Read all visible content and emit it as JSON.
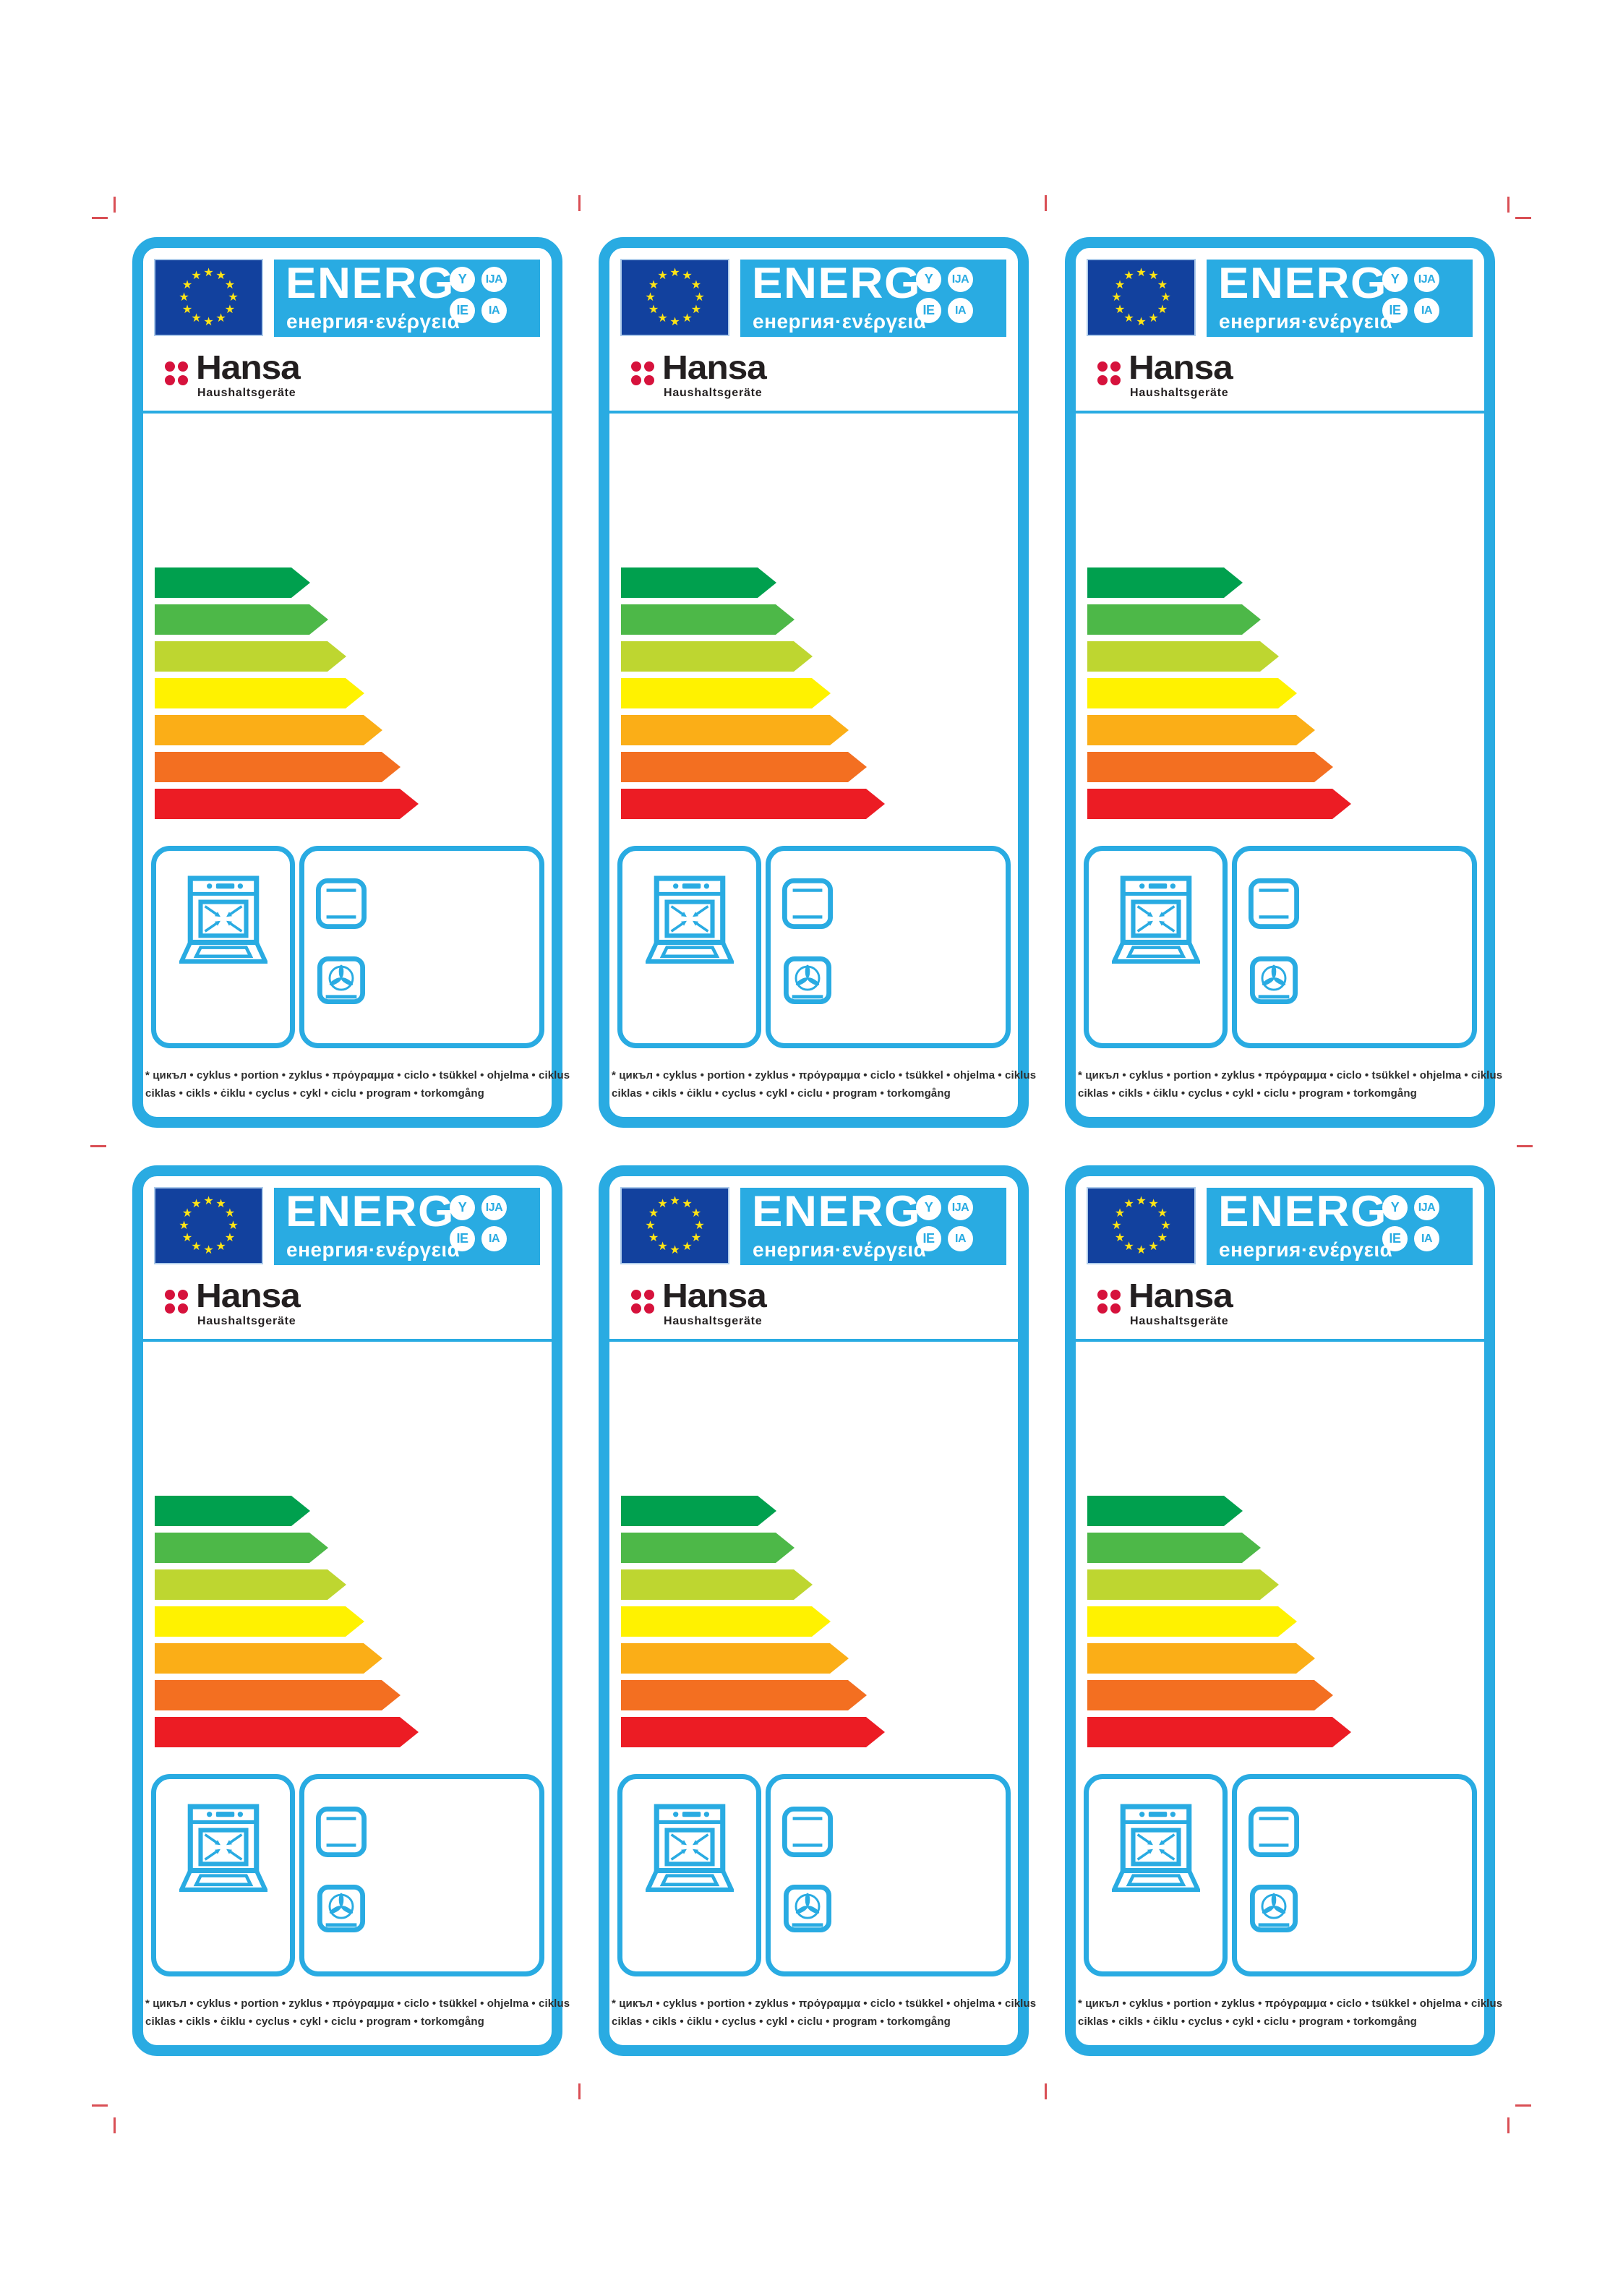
{
  "colors": {
    "accent": "#29ABE2",
    "eu_blue": "#12419E",
    "star_yellow": "#FFE415",
    "brand_red": "#D6123C",
    "brand_black": "#231F20",
    "text_dark": "#2E2E2E",
    "crop_mark": "#D94F55"
  },
  "label": {
    "energ": {
      "title": "ENERG",
      "subtitle": "енергия·ενέργεια",
      "badges": [
        "Y",
        "IJA",
        "IE",
        "IA"
      ]
    },
    "brand": {
      "name": "Hansa",
      "tagline": "Haushaltsgeräte"
    },
    "arrow_colors": [
      "#00A04E",
      "#4DB848",
      "#BED630",
      "#FFF200",
      "#FBAE17",
      "#F36F21",
      "#EC1C24"
    ],
    "footnote": {
      "line1": "* цикъл • cyklus • portion • zyklus • πρόγραμμα • ciclo • tsükkel • ohjelma • ciklus",
      "line2": "ciklas • cikls • ċiklu • cyclus • cykl • ciclu • program • torkomgång"
    }
  }
}
